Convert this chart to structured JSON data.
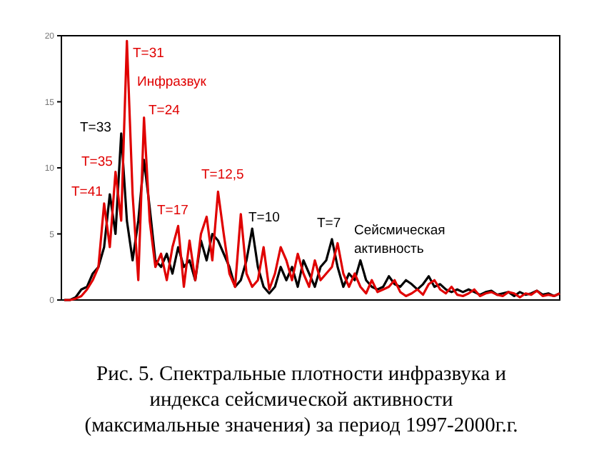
{
  "chart_data": {
    "type": "line",
    "title": "Рис. 5. Спектральные плотности инфразвука и\nиндекса сейсмической активности\n(максимальные значения) за период 1997-2000г.г.",
    "categories": [
      null,
      null,
      null,
      null,
      null,
      null,
      null,
      null,
      null,
      null,
      null,
      null,
      null,
      null,
      null,
      null,
      null,
      null,
      null,
      null,
      null,
      null,
      null,
      null,
      null,
      null,
      null,
      null,
      null,
      null,
      null,
      null,
      null,
      null,
      null,
      null,
      null,
      null,
      null,
      null,
      null,
      null,
      null,
      null,
      null,
      null,
      null,
      null,
      null,
      null,
      null,
      null,
      null,
      null,
      null,
      null,
      null,
      null,
      null,
      null,
      null,
      null,
      null,
      null,
      null,
      null,
      null,
      null,
      null,
      null,
      null,
      null,
      null,
      null,
      null,
      null,
      null,
      null,
      null,
      null,
      null,
      null,
      null,
      null,
      null,
      null,
      null,
      null
    ],
    "series": [
      {
        "name": "Сейсмическая активность",
        "color": "#000000",
        "values": [
          0,
          0,
          0.2,
          0.8,
          1,
          2,
          2.5,
          4,
          8,
          5,
          12.6,
          6,
          3,
          6,
          10.6,
          7,
          3,
          2.5,
          3.5,
          2,
          4,
          2.5,
          3,
          1.5,
          4.5,
          3,
          5,
          4.5,
          3.5,
          2.5,
          1,
          1.5,
          3,
          5.4,
          2.5,
          1,
          0.5,
          1,
          2.5,
          1.5,
          2.5,
          1,
          3,
          2,
          1,
          2.5,
          3,
          4.6,
          2.5,
          1,
          2,
          1.5,
          3,
          1.5,
          1,
          0.8,
          1,
          1.8,
          1.2,
          1,
          1.5,
          1.2,
          0.8,
          1.2,
          1.8,
          1,
          1.2,
          0.8,
          0.6,
          0.8,
          0.6,
          0.8,
          0.6,
          0.4,
          0.6,
          0.7,
          0.4,
          0.5,
          0.6,
          0.3,
          0.6,
          0.4,
          0.5,
          0.7,
          0.4,
          0.5,
          0.3,
          0.5
        ]
      },
      {
        "name": "Инфразвук",
        "color": "#e00000",
        "values": [
          0,
          0,
          0.1,
          0.3,
          0.8,
          1.5,
          2.5,
          7.3,
          4,
          9.7,
          6,
          19.6,
          8,
          1.5,
          13.8,
          6,
          2.5,
          3.5,
          1.5,
          4,
          5.6,
          1,
          4.5,
          1.5,
          5,
          6.3,
          3,
          8.2,
          5,
          2,
          1,
          6.5,
          2,
          1,
          1.5,
          4,
          0.8,
          2,
          4,
          3,
          1.5,
          3.5,
          2,
          1,
          3,
          1.5,
          2,
          2.5,
          4.3,
          2,
          1,
          2,
          1,
          0.5,
          1.5,
          0.6,
          0.8,
          1,
          1.5,
          0.6,
          0.3,
          0.5,
          0.8,
          0.4,
          1.2,
          1.5,
          0.8,
          0.5,
          1,
          0.4,
          0.3,
          0.5,
          0.8,
          0.3,
          0.5,
          0.6,
          0.4,
          0.3,
          0.6,
          0.5,
          0.2,
          0.5,
          0.4,
          0.7,
          0.3,
          0.4,
          0.3,
          0.5
        ]
      }
    ],
    "ylim": [
      0,
      20
    ],
    "yticks": [
      0,
      5,
      10,
      15,
      20
    ],
    "tick_labels": "y",
    "grid": false,
    "marker": "none",
    "line_style": "solid",
    "annotations": [
      "T=41",
      "T=35",
      "T=33",
      "T=31",
      "T=24",
      "T=17",
      "T=12,5",
      "T=10",
      "T=7"
    ]
  }
}
